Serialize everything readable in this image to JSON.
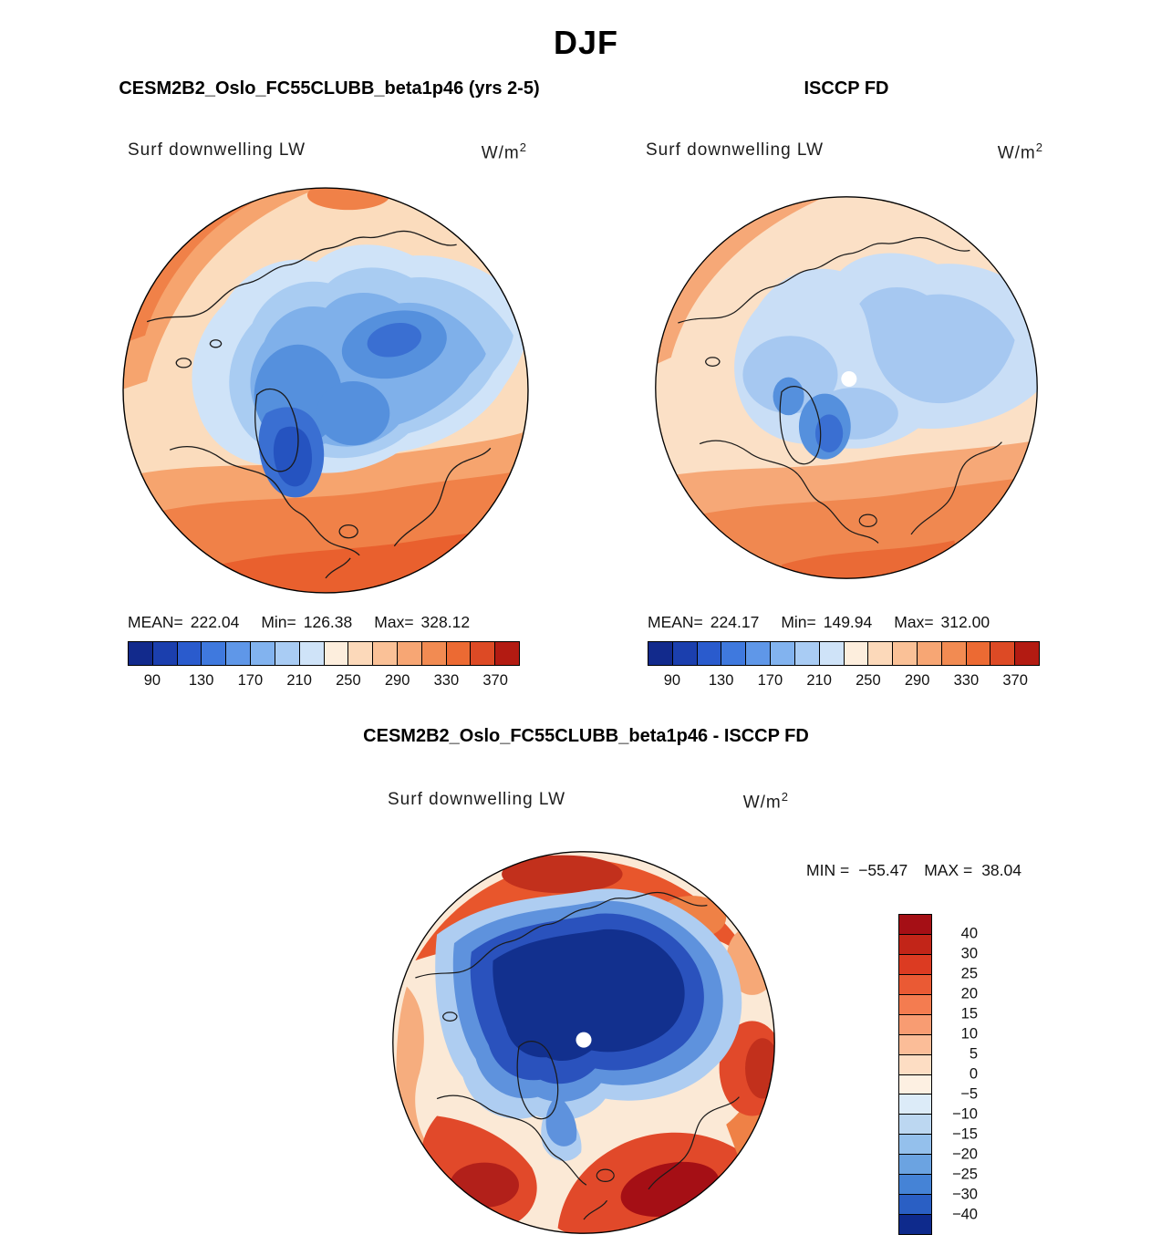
{
  "title": "DJF",
  "panels": [
    {
      "title": "CESM2B2_Oslo_FC55CLUBB_beta1p46 (yrs 2-5)",
      "field_label": "Surf downwelling LW",
      "units_base": "W/m",
      "units_exp": "2",
      "stats": {
        "mean_label": "MEAN=",
        "mean_value": "222.04",
        "min_label": "Min=",
        "min_value": "126.38",
        "max_label": "Max=",
        "max_value": "328.12"
      },
      "colorbar": {
        "ticks": [
          "90",
          "130",
          "170",
          "210",
          "250",
          "290",
          "330",
          "370"
        ],
        "colors": [
          "#122a8c",
          "#1b3fae",
          "#2a5bcd",
          "#3f79de",
          "#5f97e8",
          "#82b3ef",
          "#a9ccf4",
          "#cfe3f8",
          "#fdeedd",
          "#fcd9ba",
          "#fac197",
          "#f7a674",
          "#f28b52",
          "#ec6a33",
          "#dd4a25",
          "#b31b12"
        ]
      }
    },
    {
      "title": "ISCCP FD",
      "field_label": "Surf downwelling LW",
      "units_base": "W/m",
      "units_exp": "2",
      "stats": {
        "mean_label": "MEAN=",
        "mean_value": "224.17",
        "min_label": "Min=",
        "min_value": "149.94",
        "max_label": "Max=",
        "max_value": "312.00"
      },
      "colorbar": {
        "ticks": [
          "90",
          "130",
          "170",
          "210",
          "250",
          "290",
          "330",
          "370"
        ],
        "colors": [
          "#122a8c",
          "#1b3fae",
          "#2a5bcd",
          "#3f79de",
          "#5f97e8",
          "#82b3ef",
          "#a9ccf4",
          "#cfe3f8",
          "#fdeedd",
          "#fcd9ba",
          "#fac197",
          "#f7a674",
          "#f28b52",
          "#ec6a33",
          "#dd4a25",
          "#b31b12"
        ]
      }
    }
  ],
  "diff": {
    "title": "CESM2B2_Oslo_FC55CLUBB_beta1p46 - ISCCP FD",
    "field_label": "Surf downwelling LW",
    "units_base": "W/m",
    "units_exp": "2",
    "stats": {
      "min_label": "MIN =",
      "min_value": "−55.47",
      "max_label": "MAX =",
      "max_value": "38.04"
    },
    "colorbar": {
      "labels": [
        "40",
        "30",
        "25",
        "20",
        "15",
        "10",
        "5",
        "0",
        "−5",
        "−10",
        "−15",
        "−20",
        "−25",
        "−30",
        "−40"
      ],
      "colors": [
        "#a50f15",
        "#c22518",
        "#dc3b22",
        "#ea5a34",
        "#f47c50",
        "#f89c72",
        "#fbbd98",
        "#fdddc3",
        "#fdf0e2",
        "#dcebf8",
        "#bcd7f1",
        "#94c0ec",
        "#6ba3e1",
        "#4583d6",
        "#2a5fc4",
        "#0e2a8c"
      ]
    }
  },
  "chart_data": [
    {
      "type": "heatmap",
      "subtype": "north-polar-stereographic-filled-contour-map",
      "season": "DJF",
      "title": "CESM2B2_Oslo_FC55CLUBB_beta1p46 (yrs 2-5)",
      "variable": "Surf downwelling LW",
      "units": "W/m^2",
      "stats": {
        "mean": 222.04,
        "min": 126.38,
        "max": 328.12
      },
      "colorbar_ticks": [
        90,
        130,
        170,
        210,
        250,
        290,
        330,
        370
      ],
      "contour_interval": 20,
      "value_range": [
        70,
        390
      ],
      "legend_position": "below"
    },
    {
      "type": "heatmap",
      "subtype": "north-polar-stereographic-filled-contour-map",
      "season": "DJF",
      "title": "ISCCP FD",
      "variable": "Surf downwelling LW",
      "units": "W/m^2",
      "stats": {
        "mean": 224.17,
        "min": 149.94,
        "max": 312.0
      },
      "colorbar_ticks": [
        90,
        130,
        170,
        210,
        250,
        290,
        330,
        370
      ],
      "contour_interval": 20,
      "value_range": [
        70,
        390
      ],
      "legend_position": "below"
    },
    {
      "type": "heatmap",
      "subtype": "north-polar-stereographic-filled-contour-difference-map",
      "season": "DJF",
      "title": "CESM2B2_Oslo_FC55CLUBB_beta1p46 - ISCCP FD",
      "variable": "Surf downwelling LW",
      "units": "W/m^2",
      "stats": {
        "min": -55.47,
        "max": 38.04
      },
      "colorbar_levels": [
        40,
        30,
        25,
        20,
        15,
        10,
        5,
        0,
        -5,
        -10,
        -15,
        -20,
        -25,
        -30,
        -40
      ],
      "legend_position": "right"
    }
  ]
}
